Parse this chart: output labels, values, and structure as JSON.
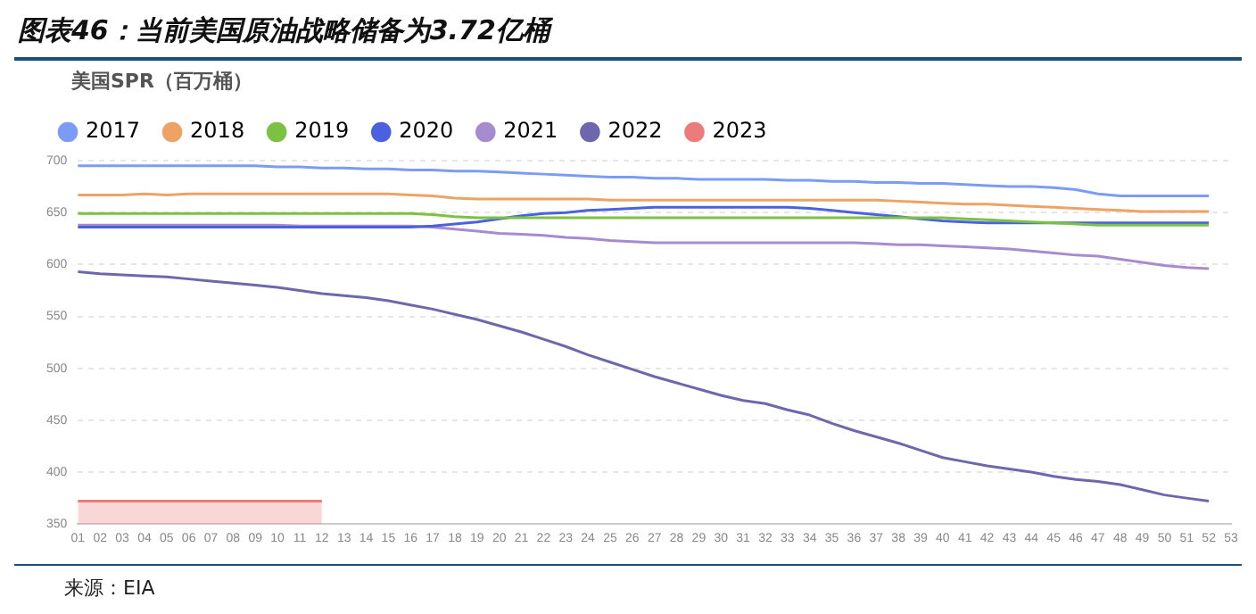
{
  "chart_data": {
    "type": "line",
    "title": "图表46：当前美国原油战略储备为3.72亿桶",
    "ylabel": "美国SPR（百万桶）",
    "annotations": [
      "来源：EIA"
    ],
    "categories": [
      "01",
      "02",
      "03",
      "04",
      "05",
      "06",
      "07",
      "08",
      "09",
      "10",
      "11",
      "12",
      "13",
      "14",
      "15",
      "16",
      "17",
      "18",
      "19",
      "20",
      "21",
      "22",
      "23",
      "24",
      "25",
      "26",
      "27",
      "28",
      "29",
      "30",
      "31",
      "32",
      "33",
      "34",
      "35",
      "36",
      "37",
      "38",
      "39",
      "40",
      "41",
      "42",
      "43",
      "44",
      "45",
      "46",
      "47",
      "48",
      "49",
      "50",
      "51",
      "52",
      "53"
    ],
    "ylim": [
      350,
      700
    ],
    "yticks": [
      350,
      400,
      450,
      500,
      550,
      600,
      650,
      700
    ],
    "grid": "y",
    "legend": "top left",
    "marker": "none",
    "line_style": "solid",
    "series": [
      {
        "name": "2017",
        "color": "#7b9cf4",
        "values": [
          695,
          695,
          695,
          695,
          695,
          695,
          695,
          695,
          695,
          694,
          694,
          693,
          693,
          692,
          692,
          691,
          691,
          690,
          690,
          689,
          688,
          687,
          686,
          685,
          684,
          684,
          683,
          683,
          682,
          682,
          682,
          682,
          681,
          681,
          680,
          680,
          679,
          679,
          678,
          678,
          677,
          676,
          675,
          675,
          674,
          672,
          668,
          666,
          666,
          666,
          666,
          666,
          null
        ]
      },
      {
        "name": "2018",
        "color": "#eea364",
        "values": [
          667,
          667,
          667,
          668,
          667,
          668,
          668,
          668,
          668,
          668,
          668,
          668,
          668,
          668,
          668,
          667,
          666,
          664,
          663,
          663,
          663,
          663,
          663,
          663,
          662,
          662,
          662,
          662,
          662,
          662,
          662,
          662,
          662,
          662,
          662,
          662,
          662,
          661,
          660,
          659,
          658,
          658,
          657,
          656,
          655,
          654,
          653,
          652,
          651,
          651,
          651,
          651,
          null
        ]
      },
      {
        "name": "2019",
        "color": "#7cc242",
        "values": [
          649,
          649,
          649,
          649,
          649,
          649,
          649,
          649,
          649,
          649,
          649,
          649,
          649,
          649,
          649,
          649,
          648,
          646,
          645,
          645,
          645,
          645,
          645,
          645,
          645,
          645,
          645,
          645,
          645,
          645,
          645,
          645,
          645,
          645,
          645,
          645,
          645,
          645,
          645,
          645,
          644,
          643,
          642,
          641,
          640,
          639,
          638,
          638,
          638,
          638,
          638,
          638,
          null
        ]
      },
      {
        "name": "2020",
        "color": "#4a62e0",
        "values": [
          636,
          636,
          636,
          636,
          636,
          636,
          636,
          636,
          636,
          636,
          636,
          636,
          636,
          636,
          636,
          636,
          637,
          639,
          641,
          644,
          647,
          649,
          650,
          652,
          653,
          654,
          655,
          655,
          655,
          655,
          655,
          655,
          655,
          654,
          652,
          650,
          648,
          646,
          644,
          642,
          641,
          640,
          640,
          640,
          640,
          640,
          640,
          640,
          640,
          640,
          640,
          640,
          null
        ]
      },
      {
        "name": "2021",
        "color": "#a78bd0",
        "values": [
          638,
          638,
          638,
          638,
          638,
          638,
          638,
          638,
          638,
          638,
          637,
          637,
          637,
          637,
          637,
          637,
          636,
          634,
          632,
          630,
          629,
          628,
          626,
          625,
          623,
          622,
          621,
          621,
          621,
          621,
          621,
          621,
          621,
          621,
          621,
          621,
          620,
          619,
          619,
          618,
          617,
          616,
          615,
          613,
          611,
          609,
          608,
          605,
          602,
          599,
          597,
          596,
          null
        ]
      },
      {
        "name": "2022",
        "color": "#6d68ae",
        "values": [
          593,
          591,
          590,
          589,
          588,
          586,
          584,
          582,
          580,
          578,
          575,
          572,
          570,
          568,
          565,
          561,
          557,
          552,
          547,
          541,
          535,
          528,
          521,
          513,
          506,
          499,
          492,
          486,
          480,
          474,
          469,
          466,
          460,
          455,
          447,
          440,
          434,
          428,
          421,
          414,
          410,
          406,
          403,
          400,
          396,
          393,
          391,
          388,
          383,
          378,
          375,
          372,
          null
        ]
      },
      {
        "name": "2023",
        "type": "area",
        "color": "#ee7b7b",
        "values": [
          372,
          372,
          372,
          372,
          372,
          372,
          372,
          372,
          372,
          372,
          372,
          372,
          null,
          null,
          null,
          null,
          null,
          null,
          null,
          null,
          null,
          null,
          null,
          null,
          null,
          null,
          null,
          null,
          null,
          null,
          null,
          null,
          null,
          null,
          null,
          null,
          null,
          null,
          null,
          null,
          null,
          null,
          null,
          null,
          null,
          null,
          null,
          null,
          null,
          null,
          null,
          null,
          null
        ]
      }
    ]
  }
}
